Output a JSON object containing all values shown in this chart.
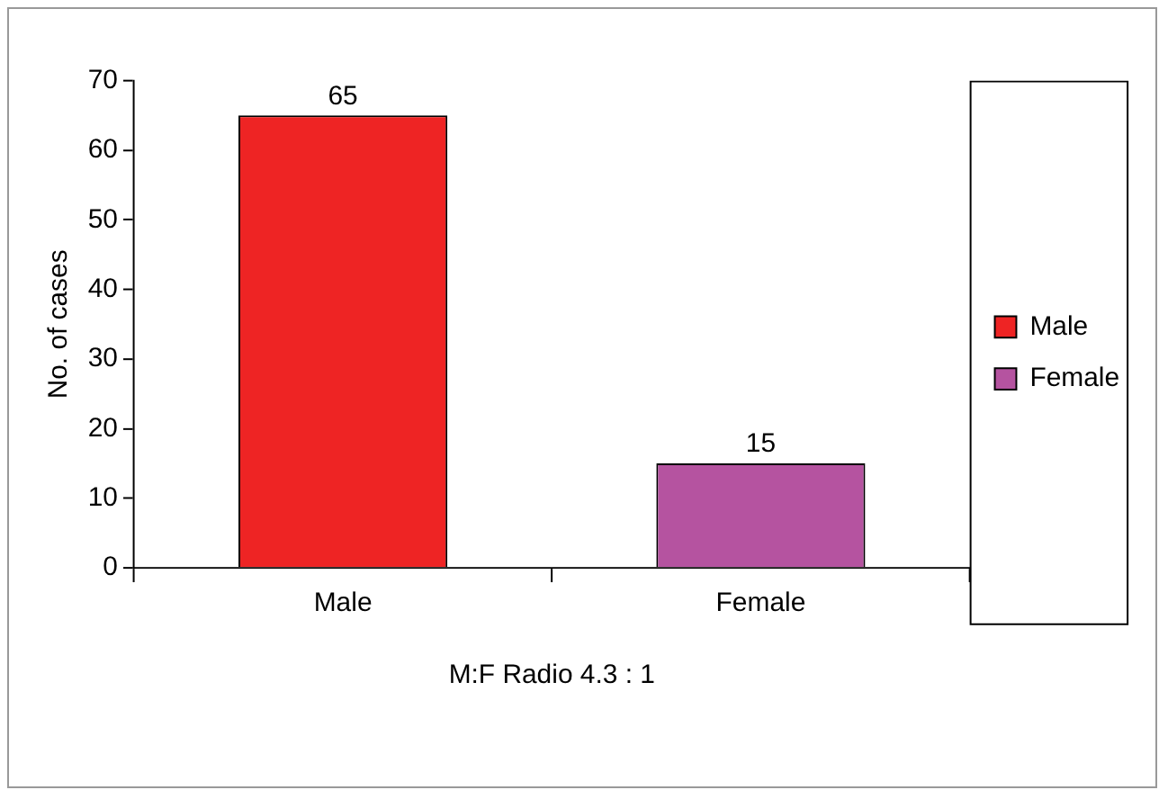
{
  "chart_data": {
    "type": "bar",
    "ylabel": "No. of cases",
    "categories": [
      "Male",
      "Female"
    ],
    "series": [
      {
        "name": "Male",
        "color": "#ee2424",
        "values": [
          65,
          null
        ]
      },
      {
        "name": "Female",
        "color": "#b553a0",
        "values": [
          null,
          15
        ]
      }
    ],
    "ylim": [
      0,
      70
    ],
    "yticks": [
      0,
      10,
      20,
      30,
      40,
      50,
      60,
      70
    ],
    "grid": false,
    "legend": "right",
    "data_labels": true,
    "annotations": [
      "M:F Radio 4.3 : 1"
    ]
  }
}
